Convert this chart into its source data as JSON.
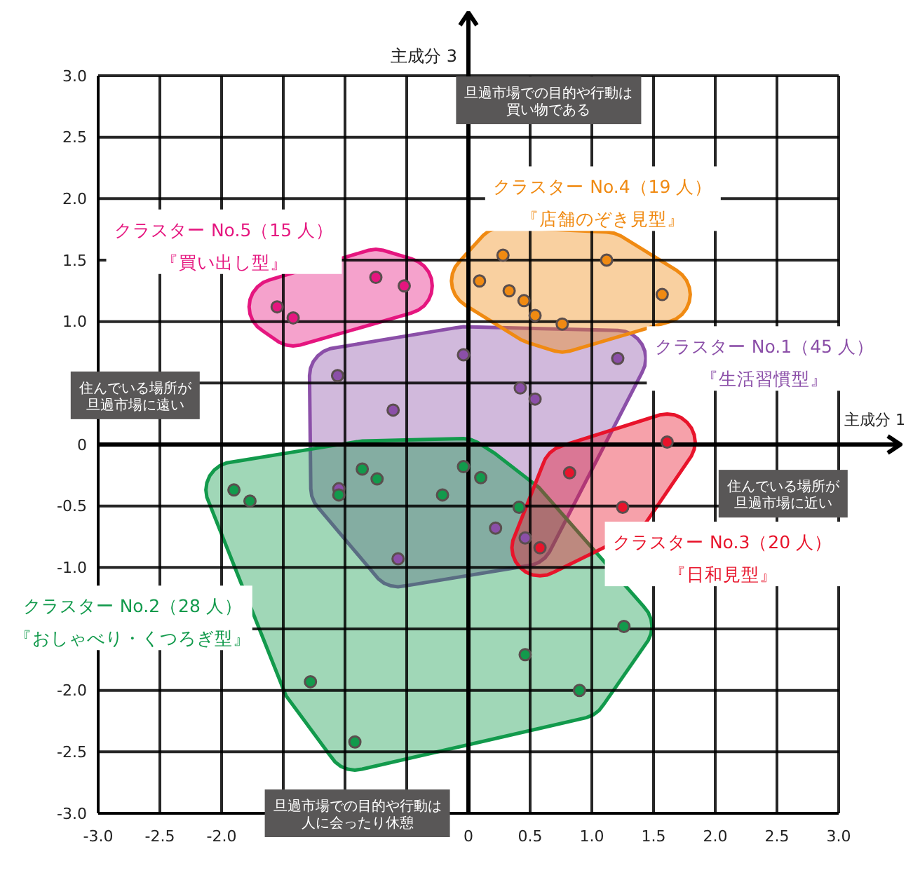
{
  "chart_data": {
    "type": "scatter",
    "xlabel": "主成分 1",
    "ylabel": "主成分 3",
    "xlim": [
      -3,
      3
    ],
    "ylim": [
      -3,
      3
    ],
    "xticks": [
      {
        "value": -3,
        "label": "-3.0"
      },
      {
        "value": -2.5,
        "label": "-2.5"
      },
      {
        "value": -2,
        "label": "-2.0"
      },
      {
        "value": -1.5,
        "label": null
      },
      {
        "value": -1,
        "label": null
      },
      {
        "value": -0.5,
        "label": null
      },
      {
        "value": 0,
        "label": "0"
      },
      {
        "value": 0.5,
        "label": "0.5"
      },
      {
        "value": 1,
        "label": "1.0"
      },
      {
        "value": 1.5,
        "label": "1.5"
      },
      {
        "value": 2,
        "label": "2.0"
      },
      {
        "value": 2.5,
        "label": "2.5"
      },
      {
        "value": 3,
        "label": "3.0"
      }
    ],
    "yticks": [
      {
        "value": -3,
        "label": "-3.0"
      },
      {
        "value": -2.5,
        "label": "-2.5"
      },
      {
        "value": -2,
        "label": "-2.0"
      },
      {
        "value": -1.5,
        "label": null
      },
      {
        "value": -1,
        "label": "-1.0"
      },
      {
        "value": -0.5,
        "label": "-0.5"
      },
      {
        "value": 0,
        "label": "0"
      },
      {
        "value": 0.5,
        "label": null
      },
      {
        "value": 1,
        "label": "1.0"
      },
      {
        "value": 1.5,
        "label": "1.5"
      },
      {
        "value": 2,
        "label": "2.0"
      },
      {
        "value": 2.5,
        "label": "2.5"
      },
      {
        "value": 3,
        "label": "3.0"
      }
    ],
    "grid": true,
    "marker": "circle",
    "series": [
      {
        "name": "クラスター No.1（45 人）",
        "color": "#8b4fa8",
        "x": [
          -0.04,
          -1.06,
          -0.61,
          1.21,
          0.42,
          0.54,
          -1.05,
          -0.57,
          0.22,
          0.46
        ],
        "values": [
          0.73,
          0.56,
          0.28,
          0.7,
          0.46,
          0.37,
          -0.36,
          -0.93,
          -0.68,
          -0.76
        ]
      },
      {
        "name": "クラスター No.2（28 人）",
        "color": "#129a4c",
        "x": [
          -1.9,
          -1.77,
          -0.86,
          -0.74,
          -1.05,
          -0.21,
          -0.04,
          0.1,
          0.41,
          1.26,
          0.46,
          0.9,
          -1.28,
          -0.92
        ],
        "values": [
          -0.37,
          -0.46,
          -0.2,
          -0.28,
          -0.41,
          -0.41,
          -0.18,
          -0.27,
          -0.51,
          -1.48,
          -1.71,
          -2.0,
          -1.93,
          -2.42
        ]
      },
      {
        "name": "クラスター No.3（20 人）",
        "color": "#e8142b",
        "x": [
          0.58,
          0.82,
          1.61,
          1.25
        ],
        "values": [
          -0.84,
          -0.23,
          0.02,
          -0.51
        ]
      },
      {
        "name": "クラスター No.4（19 人）",
        "color": "#f08a12",
        "x": [
          0.28,
          0.09,
          0.33,
          0.45,
          0.54,
          0.76,
          1.12,
          1.57
        ],
        "values": [
          1.54,
          1.33,
          1.25,
          1.17,
          1.05,
          0.98,
          1.5,
          1.22
        ]
      },
      {
        "name": "クラスター No.5（15 人）",
        "color": "#e5167f",
        "x": [
          -1.55,
          -1.42,
          -0.75,
          -0.52
        ],
        "values": [
          1.12,
          1.03,
          1.36,
          1.29
        ]
      }
    ],
    "annotations": [
      "旦過市場での目的や行動は買い物である",
      "旦過市場での目的や行動は人に会ったり休憩",
      "住んでいる場所が旦過市場に遠い",
      "住んでいる場所が旦過市場に近い",
      "『生活習慣型』",
      "『おしゃべり・くつろぎ型』",
      "『日和見型』",
      "『店舗のぞき見型』",
      "『買い出し型』"
    ]
  }
}
